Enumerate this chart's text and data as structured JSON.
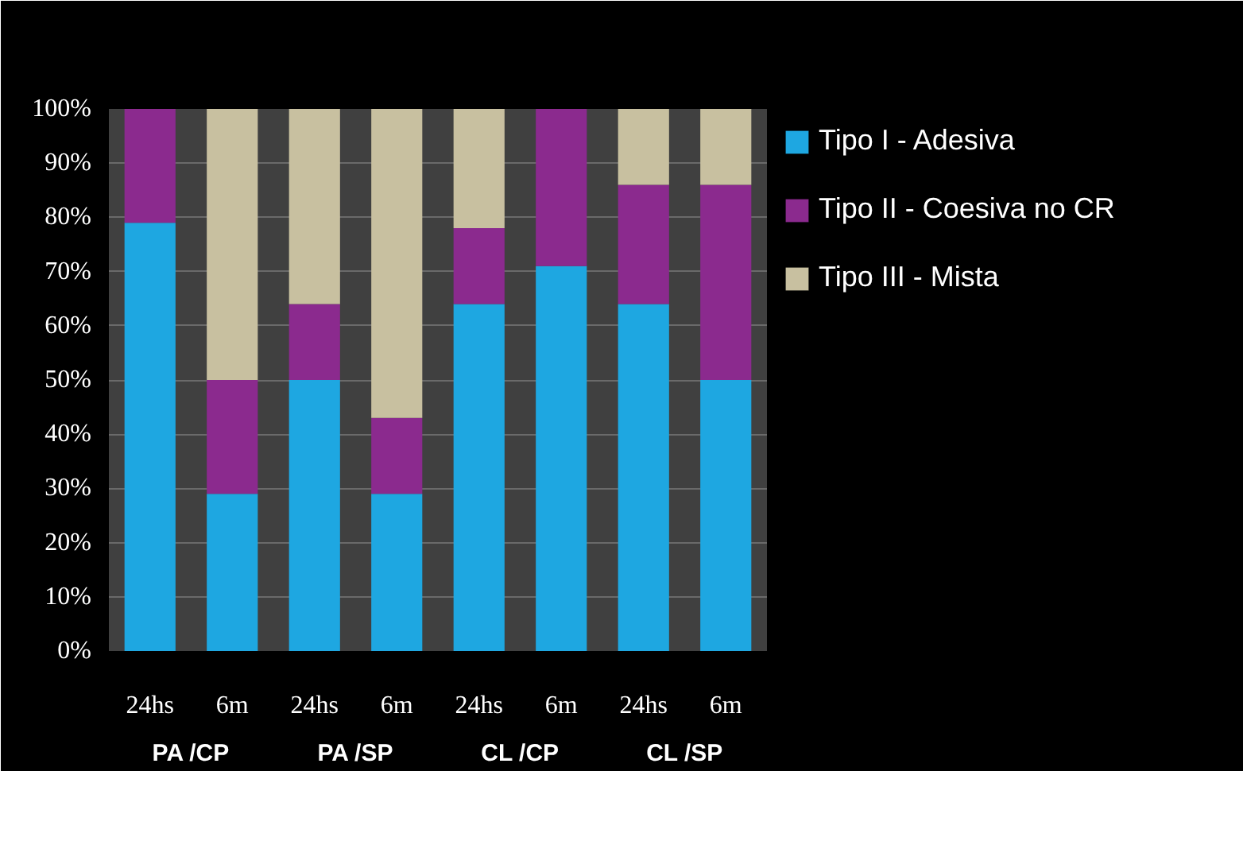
{
  "chart_data": {
    "type": "bar",
    "stacked": true,
    "categories": [
      "24hs",
      "6m",
      "24hs",
      "6m",
      "24hs",
      "6m",
      "24hs",
      "6m"
    ],
    "series": [
      {
        "name": "Tipo I - Adesiva",
        "color": "#1ea7e1",
        "values": [
          79,
          29,
          50,
          29,
          64,
          71,
          64,
          50
        ]
      },
      {
        "name": "Tipo II - Coesiva no CR",
        "color": "#8b2a8e",
        "values": [
          21,
          21,
          14,
          14,
          14,
          29,
          22,
          36
        ]
      },
      {
        "name": "Tipo III - Mista",
        "color": "#c8c0a0",
        "values": [
          0,
          50,
          36,
          57,
          22,
          0,
          14,
          14
        ]
      }
    ],
    "ylim": [
      0,
      100
    ],
    "yticks": [
      {
        "value": 0,
        "label": "0%"
      },
      {
        "value": 10,
        "label": "10%"
      },
      {
        "value": 20,
        "label": "20%"
      },
      {
        "value": 30,
        "label": "30%"
      },
      {
        "value": 40,
        "label": "40%"
      },
      {
        "value": 50,
        "label": "50%"
      },
      {
        "value": 60,
        "label": "60%"
      },
      {
        "value": 70,
        "label": "70%"
      },
      {
        "value": 80,
        "label": "80%"
      },
      {
        "value": 90,
        "label": "90%"
      },
      {
        "value": 100,
        "label": "100%"
      }
    ],
    "annotations": [
      "PA /CP",
      "PA /SP",
      "CL /CP",
      "CL /SP"
    ],
    "grid": "y",
    "legend": "right"
  }
}
